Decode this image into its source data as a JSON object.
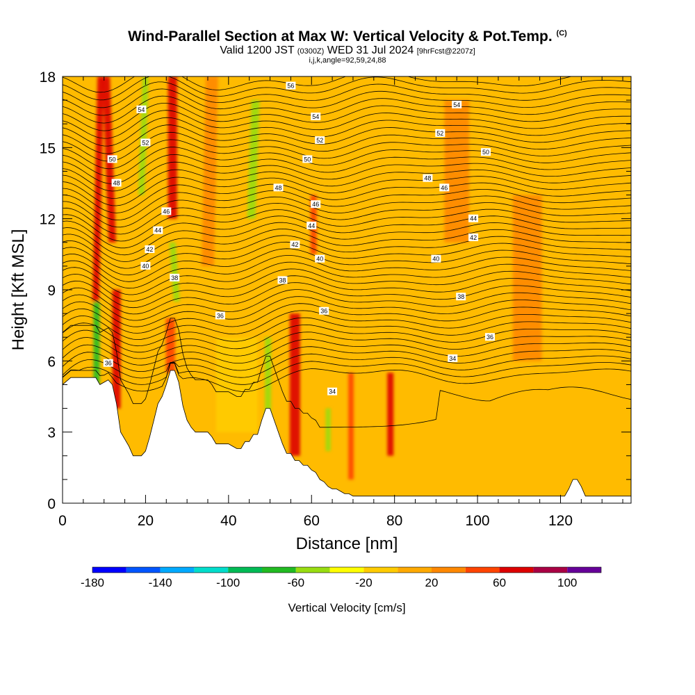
{
  "header": {
    "title": "Wind-Parallel Section at Max W: Vertical Velocity & Pot.Temp.",
    "copyright": "(C)",
    "valid_prefix": "Valid 1200 JST",
    "valid_utc": "(0300Z)",
    "valid_date": "WED 31 Jul 2024",
    "forecast": "[9hrFcst@2207z]",
    "grid_note": "i,j,k,angle=92,59,24,88"
  },
  "colors": {
    "bins": [
      "#0000ff",
      "#0055ff",
      "#00aaff",
      "#00ddcc",
      "#00bb55",
      "#22bb22",
      "#99dd11",
      "#ffff00",
      "#ffcc00",
      "#ffaa00",
      "#ff8800",
      "#ff4400",
      "#dd0000",
      "#aa0044",
      "#660099"
    ],
    "background_field": "#ffbb00",
    "terrain": "#ffffff",
    "contour": "#000000"
  },
  "chart_data": {
    "type": "heatmap",
    "title": "Wind-Parallel Section at Max W: Vertical Velocity & Pot.Temp.",
    "xlabel": "Distance [nm]",
    "ylabel": "Height [Kft MSL]",
    "xlim": [
      0,
      137
    ],
    "ylim": [
      0,
      18
    ],
    "x_ticks": [
      0,
      20,
      40,
      60,
      80,
      100,
      120
    ],
    "y_ticks": [
      0,
      3,
      6,
      9,
      12,
      15,
      18
    ],
    "colorbar": {
      "title": "Vertical Velocity [cm/s]",
      "range": [
        -180,
        120
      ],
      "step": 20,
      "tick_values": [
        -180,
        -140,
        -100,
        -60,
        -20,
        20,
        60,
        100
      ]
    },
    "terrain_height_kft": {
      "x": [
        0,
        2,
        8,
        9,
        11,
        12,
        13,
        14,
        16,
        17,
        19,
        20,
        21,
        22,
        23,
        24,
        25,
        26,
        27,
        28,
        29,
        30,
        31,
        32,
        33,
        34,
        35,
        36,
        37,
        38,
        39,
        40,
        41,
        42,
        43,
        44,
        45,
        46,
        47,
        48,
        49,
        50,
        51,
        52,
        53,
        54,
        55,
        56,
        57,
        58,
        59,
        60,
        61,
        62,
        63,
        64,
        65,
        66,
        67,
        68,
        69,
        70,
        80,
        90,
        100,
        110,
        121,
        122,
        123,
        124,
        125,
        126,
        127,
        137
      ],
      "h": [
        5.0,
        5.3,
        5.3,
        5.0,
        5.2,
        5.0,
        4.2,
        3.0,
        2.4,
        2.0,
        2.0,
        2.2,
        2.8,
        3.5,
        4.2,
        4.5,
        5.0,
        5.6,
        5.6,
        5.1,
        4.1,
        3.5,
        3.2,
        3.0,
        3.0,
        3.0,
        3.0,
        2.8,
        2.5,
        2.5,
        2.5,
        2.5,
        2.4,
        2.3,
        2.3,
        2.6,
        2.6,
        2.9,
        2.9,
        3.5,
        4.0,
        4.0,
        3.5,
        3.0,
        2.5,
        2.1,
        2.1,
        1.8,
        1.8,
        1.6,
        1.6,
        1.4,
        1.3,
        1.0,
        0.9,
        0.7,
        0.6,
        0.6,
        0.5,
        0.4,
        0.4,
        0.3,
        0.3,
        0.3,
        0.3,
        0.3,
        0.3,
        0.6,
        1.0,
        1.0,
        0.7,
        0.3,
        0.3,
        0.3
      ]
    },
    "vertical_velocity_bands": [
      {
        "x": 8,
        "width": 1.6,
        "z0": 8.5,
        "z1": 18,
        "tilt": 1.2,
        "value": 70
      },
      {
        "x": 8.2,
        "width": 1.5,
        "z0": 4.5,
        "z1": 8.5,
        "tilt": 0,
        "value": -70
      },
      {
        "x": 12,
        "width": 1.8,
        "z0": 11,
        "z1": 18,
        "tilt": -1.5,
        "value": 70
      },
      {
        "x": 13,
        "width": 2,
        "z0": 4,
        "z1": 9,
        "tilt": 0,
        "value": 60
      },
      {
        "x": 19,
        "width": 1.5,
        "z0": 13,
        "z1": 18,
        "tilt": 1,
        "value": -60
      },
      {
        "x": 26.5,
        "width": 2.2,
        "z0": 12,
        "z1": 18,
        "tilt": 0,
        "value": 70
      },
      {
        "x": 27.5,
        "width": 1.5,
        "z0": 8.5,
        "z1": 11,
        "tilt": -1,
        "value": -50
      },
      {
        "x": 26,
        "width": 2.2,
        "z0": 5.5,
        "z1": 7.8,
        "tilt": 0,
        "value": 40
      },
      {
        "x": 35,
        "width": 3,
        "z0": 10,
        "z1": 18,
        "tilt": 1,
        "value": 30
      },
      {
        "x": 45.5,
        "width": 2,
        "z0": 12,
        "z1": 17,
        "tilt": 1,
        "value": -60
      },
      {
        "x": 49.5,
        "width": 1.5,
        "z0": 3.5,
        "z1": 7,
        "tilt": 0,
        "value": -60
      },
      {
        "x": 56,
        "width": 2.5,
        "z0": 2,
        "z1": 8,
        "tilt": 0,
        "value": 60
      },
      {
        "x": 60.5,
        "width": 1.5,
        "z0": 10.5,
        "z1": 13,
        "tilt": 0,
        "value": 40
      },
      {
        "x": 64,
        "width": 1.2,
        "z0": 2.2,
        "z1": 4,
        "tilt": 0,
        "value": -60
      },
      {
        "x": 69.5,
        "width": 1.3,
        "z0": 1,
        "z1": 5.5,
        "tilt": 0,
        "value": 40
      },
      {
        "x": 79,
        "width": 1.5,
        "z0": 2,
        "z1": 5.5,
        "tilt": 0,
        "value": 60
      },
      {
        "x": 95,
        "width": 6,
        "z0": 11,
        "z1": 17,
        "tilt": 0,
        "value": 20
      },
      {
        "x": 112,
        "width": 7,
        "z0": 6,
        "z1": 13,
        "tilt": 0,
        "value": 20
      },
      {
        "x": 42,
        "width": 10,
        "z0": 3,
        "z1": 7,
        "tilt": 0,
        "value": -20
      }
    ],
    "potential_temperature_labels": [
      {
        "x": 11,
        "z": 5.9,
        "label": "36"
      },
      {
        "x": 38,
        "z": 7.9,
        "label": "36"
      },
      {
        "x": 63,
        "z": 8.1,
        "label": "36"
      },
      {
        "x": 103,
        "z": 7.0,
        "label": "36"
      },
      {
        "x": 94,
        "z": 6.1,
        "label": "34"
      },
      {
        "x": 65,
        "z": 4.7,
        "label": "34"
      },
      {
        "x": 27,
        "z": 9.5,
        "label": "38"
      },
      {
        "x": 53,
        "z": 9.4,
        "label": "38"
      },
      {
        "x": 96,
        "z": 8.7,
        "label": "38"
      },
      {
        "x": 20,
        "z": 10.0,
        "label": "40"
      },
      {
        "x": 62,
        "z": 10.3,
        "label": "40"
      },
      {
        "x": 90,
        "z": 10.3,
        "label": "40"
      },
      {
        "x": 21,
        "z": 10.7,
        "label": "42"
      },
      {
        "x": 56,
        "z": 10.9,
        "label": "42"
      },
      {
        "x": 99,
        "z": 11.2,
        "label": "42"
      },
      {
        "x": 23,
        "z": 11.5,
        "label": "44"
      },
      {
        "x": 60,
        "z": 11.7,
        "label": "44"
      },
      {
        "x": 99,
        "z": 12.0,
        "label": "44"
      },
      {
        "x": 25,
        "z": 12.3,
        "label": "46"
      },
      {
        "x": 61,
        "z": 12.6,
        "label": "46"
      },
      {
        "x": 92,
        "z": 13.3,
        "label": "46"
      },
      {
        "x": 13,
        "z": 13.5,
        "label": "48"
      },
      {
        "x": 52,
        "z": 13.3,
        "label": "48"
      },
      {
        "x": 88,
        "z": 13.7,
        "label": "48"
      },
      {
        "x": 12,
        "z": 14.5,
        "label": "50"
      },
      {
        "x": 59,
        "z": 14.5,
        "label": "50"
      },
      {
        "x": 102,
        "z": 14.8,
        "label": "50"
      },
      {
        "x": 20,
        "z": 15.2,
        "label": "52"
      },
      {
        "x": 62,
        "z": 15.3,
        "label": "52"
      },
      {
        "x": 91,
        "z": 15.6,
        "label": "52"
      },
      {
        "x": 19,
        "z": 16.6,
        "label": "54"
      },
      {
        "x": 61,
        "z": 16.3,
        "label": "54"
      },
      {
        "x": 95,
        "z": 16.8,
        "label": "54"
      },
      {
        "x": 55,
        "z": 17.6,
        "label": "56"
      }
    ]
  }
}
